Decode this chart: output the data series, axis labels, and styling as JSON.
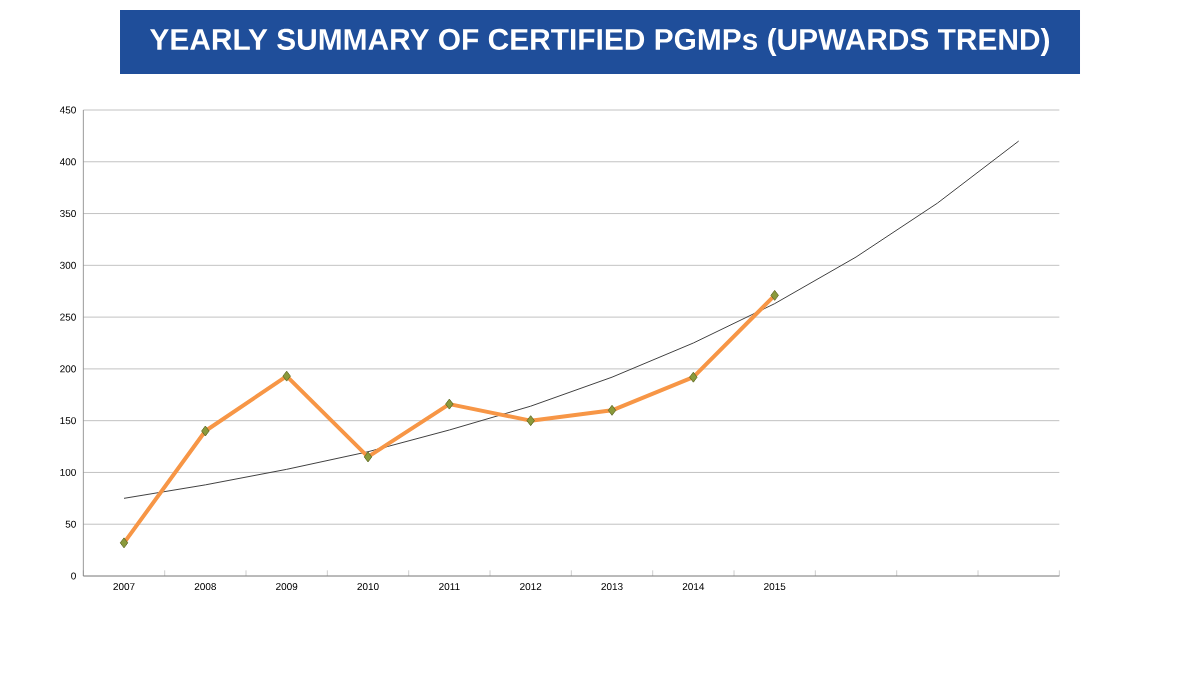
{
  "chart_data": {
    "type": "line",
    "title": "YEARLY SUMMARY OF CERTIFIED PGMPs (UPWARDS TREND)",
    "categories": [
      "2007",
      "2008",
      "2009",
      "2010",
      "2011",
      "2012",
      "2013",
      "2014",
      "2015",
      null,
      null,
      null
    ],
    "series": [
      {
        "color": "#f79646",
        "marker": "diamond",
        "values": [
          32,
          140,
          193,
          115,
          166,
          150,
          160,
          192,
          271,
          null,
          null,
          null
        ]
      },
      {
        "color": "#404040",
        "values": [
          75,
          88,
          103,
          120,
          141,
          164,
          192,
          225,
          263,
          308,
          360,
          420
        ]
      }
    ],
    "ylim": [
      0,
      450
    ],
    "yticks": [
      0,
      50,
      100,
      150,
      200,
      250,
      300,
      350,
      400,
      450
    ],
    "grid": "y"
  }
}
